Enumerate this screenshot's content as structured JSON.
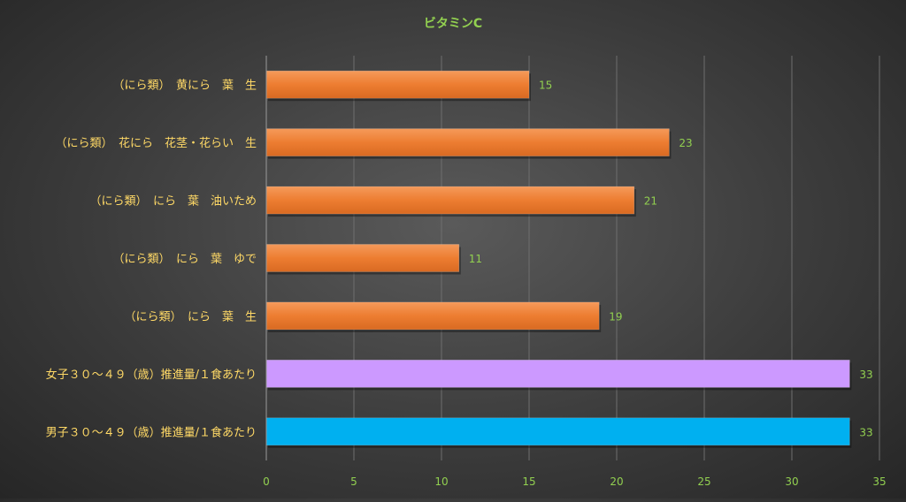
{
  "chart_data": {
    "type": "bar",
    "orientation": "horizontal",
    "title": "ビタミンC",
    "categories": [
      "（にら類）　黄にら　葉　生",
      "（にら類）　花にら　花茎・花らい　生",
      "（にら類）　にら　葉　油いため",
      "（にら類）　にら　葉　ゆで",
      "（にら類）　にら　葉　生",
      "女子３０～４９（歳）推進量/１食あたり",
      "男子３０～４９（歳）推進量/１食あたり"
    ],
    "values": [
      15,
      23,
      21,
      11,
      19,
      33.3,
      33.3
    ],
    "data_labels": [
      "15",
      "23",
      "21",
      "11",
      "19",
      "33",
      "33"
    ],
    "bar_colors": [
      "#ED7D31",
      "#ED7D31",
      "#ED7D31",
      "#ED7D31",
      "#ED7D31",
      "#CC99FF",
      "#00B0F0"
    ],
    "xlim": [
      0,
      35
    ],
    "x_ticks": [
      0,
      5,
      10,
      15,
      20,
      25,
      30,
      35
    ],
    "x_tick_labels": [
      "0",
      "5",
      "10",
      "15",
      "20",
      "25",
      "30",
      "35"
    ],
    "grid": "vertical",
    "legend": "none",
    "colors": {
      "title": "#92D050",
      "category_label": "#FFD966",
      "tick_label": "#92D050",
      "data_label": "#92D050",
      "grid": "#6e6e6e",
      "axis": "#9a9a9a"
    }
  }
}
